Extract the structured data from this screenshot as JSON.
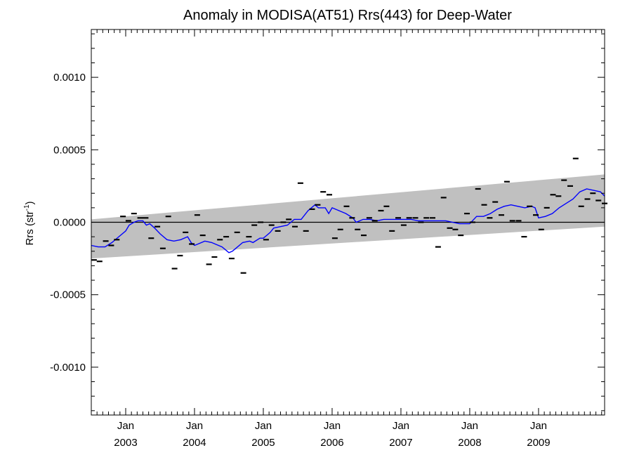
{
  "chart_data": {
    "type": "scatter",
    "title": "Anomaly in MODISA(AT51) Rrs(443) for Deep-Water",
    "xlabel": "",
    "ylabel": "Rrs (str",
    "ylabel_sup": "-1",
    "ylabel_close": ")",
    "xlim": [
      2002.5,
      2009.96
    ],
    "ylim": [
      -0.00133,
      0.00133
    ],
    "y_ticks": [
      {
        "value": 0.001,
        "label": "0.0010"
      },
      {
        "value": 0.0005,
        "label": "0.0005"
      },
      {
        "value": 0.0,
        "label": "0.0000"
      },
      {
        "value": -0.0005,
        "label": "-0.0005"
      },
      {
        "value": -0.001,
        "label": "-0.0010"
      }
    ],
    "y_minor_step": 0.0001,
    "x_ticks": [
      {
        "value": 2003.0,
        "month": "Jan",
        "year": "2003"
      },
      {
        "value": 2004.0,
        "month": "Jan",
        "year": "2004"
      },
      {
        "value": 2005.0,
        "month": "Jan",
        "year": "2005"
      },
      {
        "value": 2006.0,
        "month": "Jan",
        "year": "2006"
      },
      {
        "value": 2007.0,
        "month": "Jan",
        "year": "2007"
      },
      {
        "value": 2008.0,
        "month": "Jan",
        "year": "2008"
      },
      {
        "value": 2009.0,
        "month": "Jan",
        "year": "2009"
      }
    ],
    "zero_line": 0.0,
    "band": {
      "x": [
        2002.5,
        2009.96
      ],
      "upper": [
        2e-05,
        0.00033
      ],
      "lower": [
        -0.00025,
        -3e-05
      ],
      "color": "#c0c0c0"
    },
    "points": {
      "color": "#000000",
      "x": [
        2002.54,
        2002.62,
        2002.71,
        2002.79,
        2002.87,
        2002.96,
        2003.04,
        2003.12,
        2003.21,
        2003.29,
        2003.37,
        2003.46,
        2003.54,
        2003.62,
        2003.71,
        2003.79,
        2003.87,
        2003.96,
        2004.04,
        2004.12,
        2004.21,
        2004.29,
        2004.37,
        2004.46,
        2004.54,
        2004.62,
        2004.71,
        2004.79,
        2004.87,
        2004.96,
        2005.04,
        2005.12,
        2005.21,
        2005.29,
        2005.37,
        2005.46,
        2005.54,
        2005.62,
        2005.71,
        2005.79,
        2005.87,
        2005.96,
        2006.04,
        2006.12,
        2006.21,
        2006.29,
        2006.37,
        2006.46,
        2006.54,
        2006.62,
        2006.71,
        2006.79,
        2006.87,
        2006.96,
        2007.04,
        2007.12,
        2007.21,
        2007.29,
        2007.37,
        2007.46,
        2007.54,
        2007.62,
        2007.71,
        2007.79,
        2007.87,
        2007.96,
        2008.04,
        2008.12,
        2008.21,
        2008.29,
        2008.37,
        2008.46,
        2008.54,
        2008.62,
        2008.71,
        2008.79,
        2008.87,
        2008.96,
        2009.04,
        2009.12,
        2009.21,
        2009.29,
        2009.37,
        2009.46,
        2009.54,
        2009.62,
        2009.71,
        2009.79,
        2009.87,
        2009.96
      ],
      "y": [
        -0.00026,
        -0.00027,
        -0.00013,
        -0.00016,
        -0.00012,
        4e-05,
        1e-05,
        6e-05,
        3e-05,
        3e-05,
        -0.00011,
        -3e-05,
        -0.00018,
        4e-05,
        -0.00032,
        -0.00023,
        -7e-05,
        -0.00015,
        5e-05,
        -9e-05,
        -0.00029,
        -0.00024,
        -0.00012,
        -0.0001,
        -0.00025,
        -7e-05,
        -0.00035,
        -0.0001,
        -2e-05,
        0.0,
        -0.00012,
        -2e-05,
        -6e-05,
        0.0,
        2e-05,
        -3e-05,
        0.00027,
        -6e-05,
        9e-05,
        0.00012,
        0.00021,
        0.00019,
        -0.00011,
        -5e-05,
        0.00011,
        3e-05,
        -5e-05,
        -9e-05,
        3e-05,
        1e-05,
        8e-05,
        0.00011,
        -6e-05,
        3e-05,
        -2e-05,
        3e-05,
        3e-05,
        0.0,
        3e-05,
        3e-05,
        -0.00017,
        0.00017,
        -4e-05,
        -5e-05,
        -9e-05,
        6e-05,
        0.0,
        0.00023,
        0.00012,
        3e-05,
        0.00014,
        5e-05,
        0.00028,
        1e-05,
        1e-05,
        -0.0001,
        0.00011,
        5e-05,
        -5e-05,
        0.0001,
        0.00019,
        0.00018,
        0.00029,
        0.00025,
        0.00044,
        0.00011,
        0.00016,
        0.0002,
        0.00015,
        0.00013
      ]
    },
    "trend": {
      "color": "#0000ff",
      "x": [
        2002.5,
        2002.6,
        2002.7,
        2002.8,
        2002.9,
        2003.0,
        2003.05,
        2003.12,
        2003.18,
        2003.25,
        2003.3,
        2003.35,
        2003.42,
        2003.5,
        2003.6,
        2003.7,
        2003.8,
        2003.9,
        2003.95,
        2004.0,
        2004.05,
        2004.15,
        2004.25,
        2004.3,
        2004.4,
        2004.5,
        2004.55,
        2004.6,
        2004.7,
        2004.8,
        2004.85,
        2004.95,
        2005.0,
        2005.05,
        2005.1,
        2005.15,
        2005.25,
        2005.35,
        2005.45,
        2005.55,
        2005.65,
        2005.75,
        2005.8,
        2005.9,
        2005.95,
        2006.0,
        2006.1,
        2006.2,
        2006.3,
        2006.35,
        2006.45,
        2006.55,
        2006.65,
        2006.75,
        2006.85,
        2006.95,
        2007.05,
        2007.15,
        2007.25,
        2007.35,
        2007.45,
        2007.55,
        2007.65,
        2007.75,
        2007.85,
        2007.95,
        2008.0,
        2008.1,
        2008.2,
        2008.3,
        2008.4,
        2008.5,
        2008.6,
        2008.7,
        2008.8,
        2008.9,
        2008.95,
        2009.0,
        2009.1,
        2009.2,
        2009.3,
        2009.4,
        2009.5,
        2009.6,
        2009.7,
        2009.8,
        2009.9,
        2009.96
      ],
      "y": [
        -0.00016,
        -0.00017,
        -0.00017,
        -0.00014,
        -0.0001,
        -6e-05,
        -2e-05,
        0.0,
        1e-05,
        1e-05,
        -2e-05,
        -1e-05,
        -4e-05,
        -8e-05,
        -0.00012,
        -0.00013,
        -0.00012,
        -0.0001,
        -0.00014,
        -0.00016,
        -0.00015,
        -0.00013,
        -0.00014,
        -0.00015,
        -0.00017,
        -0.00021,
        -0.0002,
        -0.00018,
        -0.00014,
        -0.00013,
        -0.00014,
        -0.00011,
        -0.00011,
        -9e-05,
        -7e-05,
        -4e-05,
        -3e-05,
        -2e-05,
        2e-05,
        2e-05,
        8e-05,
        0.00012,
        0.0001,
        0.0001,
        6e-05,
        0.0001,
        8e-05,
        6e-05,
        3e-05,
        0.0,
        2e-05,
        2e-05,
        1e-05,
        2e-05,
        2e-05,
        2e-05,
        2e-05,
        2e-05,
        1e-05,
        1e-05,
        1e-05,
        1e-05,
        1e-05,
        0.0,
        -1e-05,
        -1e-05,
        -1e-05,
        4e-05,
        4e-05,
        6e-05,
        9e-05,
        0.00011,
        0.00012,
        0.00011,
        0.0001,
        0.00011,
        0.0001,
        3e-05,
        4e-05,
        6e-05,
        0.0001,
        0.00013,
        0.00016,
        0.00021,
        0.00023,
        0.00022,
        0.00021,
        0.00018
      ]
    }
  }
}
